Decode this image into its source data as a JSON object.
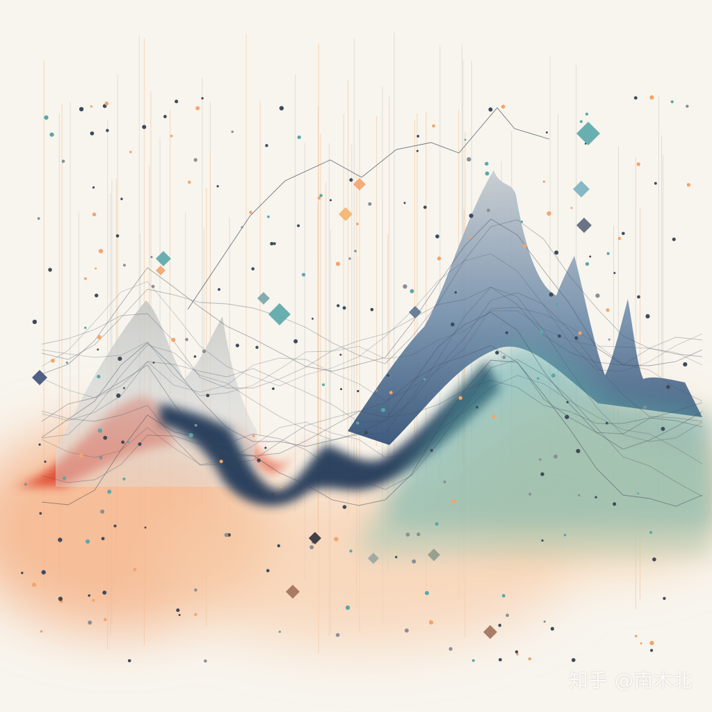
{
  "watermark": {
    "text": "知乎 @南木北"
  },
  "palette": {
    "background": "#f8f5ee",
    "red": "#e04a2f",
    "orange": "#f4a46a",
    "navy": "#1f3555",
    "teal": "#5aa7a8",
    "sage": "#a9c9b5",
    "grey": "#b9bbb8",
    "line": "#3e4a5c"
  }
}
